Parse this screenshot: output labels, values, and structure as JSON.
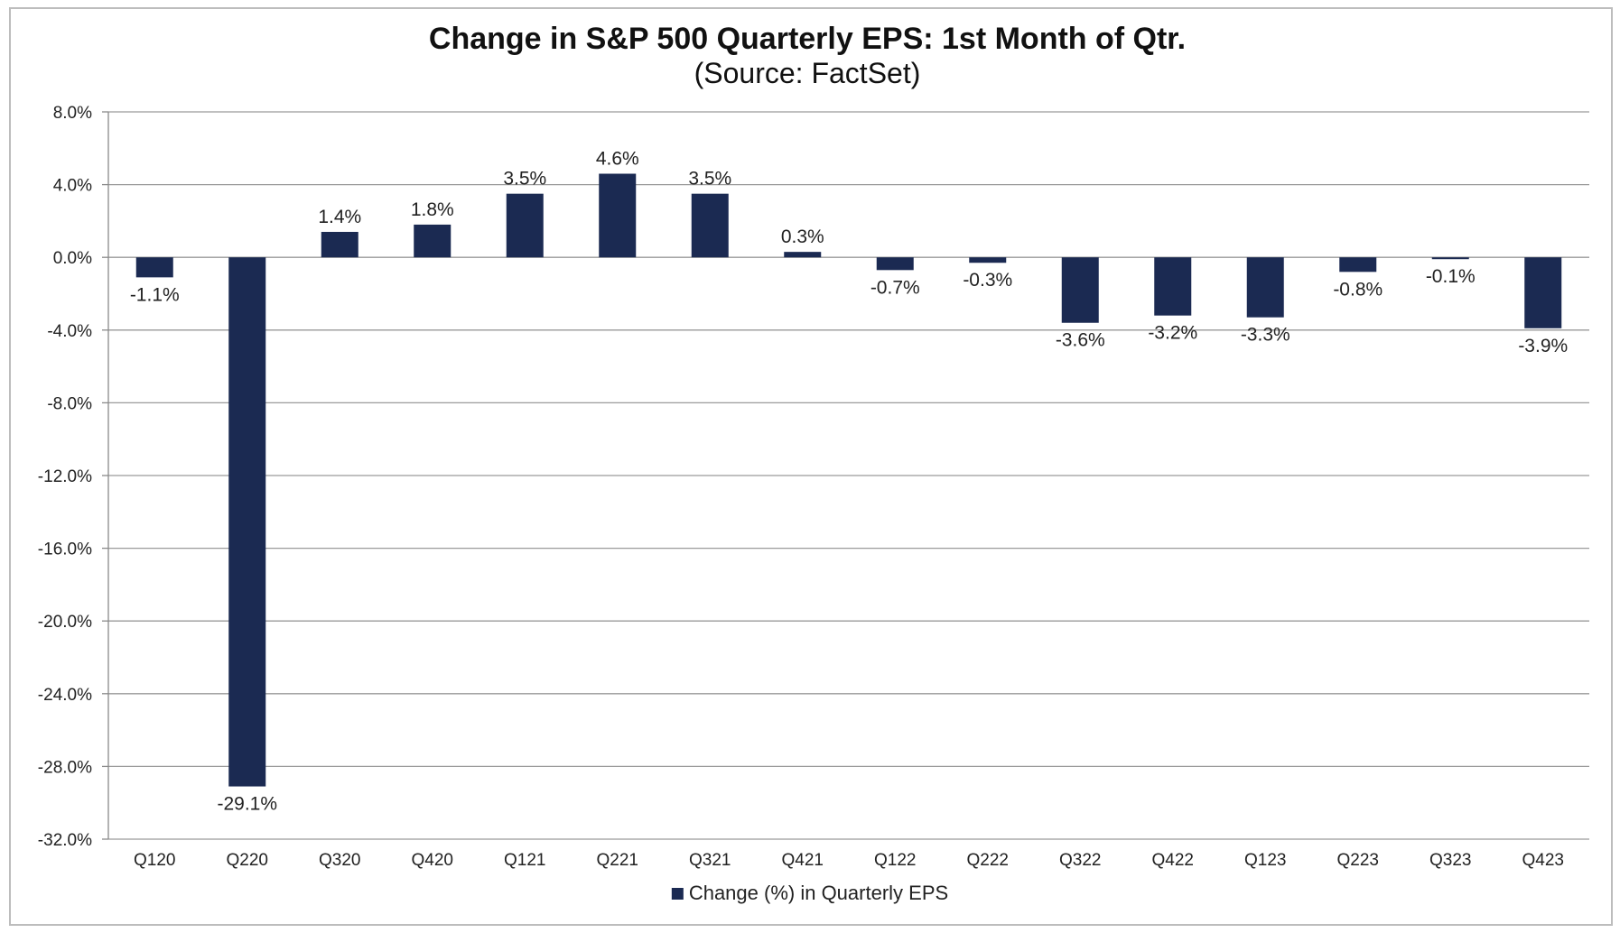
{
  "chart_data": {
    "type": "bar",
    "title": "Change in S&P 500 Quarterly EPS: 1st Month of Qtr.",
    "subtitle": "(Source: FactSet)",
    "xlabel": "",
    "ylabel": "",
    "ylim": [
      -32,
      8
    ],
    "yticks": [
      8,
      4,
      0,
      -4,
      -8,
      -12,
      -16,
      -20,
      -24,
      -28,
      -32
    ],
    "ytick_labels": [
      "8.0%",
      "4.0%",
      "0.0%",
      "-4.0%",
      "-8.0%",
      "-12.0%",
      "-16.0%",
      "-20.0%",
      "-24.0%",
      "-28.0%",
      "-32.0%"
    ],
    "grid": true,
    "categories": [
      "Q120",
      "Q220",
      "Q320",
      "Q420",
      "Q121",
      "Q221",
      "Q321",
      "Q421",
      "Q122",
      "Q222",
      "Q322",
      "Q422",
      "Q123",
      "Q223",
      "Q323",
      "Q423"
    ],
    "series": [
      {
        "name": "Change (%) in Quarterly EPS",
        "color": "#1b2a52",
        "values": [
          -1.1,
          -29.1,
          1.4,
          1.8,
          3.5,
          4.6,
          3.5,
          0.3,
          -0.7,
          -0.3,
          -3.6,
          -3.2,
          -3.3,
          -0.8,
          -0.1,
          -3.9
        ],
        "labels": [
          "-1.1%",
          "-29.1%",
          "1.4%",
          "1.8%",
          "3.5%",
          "4.6%",
          "3.5%",
          "0.3%",
          "-0.7%",
          "-0.3%",
          "-3.6%",
          "-3.2%",
          "-3.3%",
          "-0.8%",
          "-0.1%",
          "-3.9%"
        ]
      }
    ],
    "legend_position": "bottom-center"
  }
}
